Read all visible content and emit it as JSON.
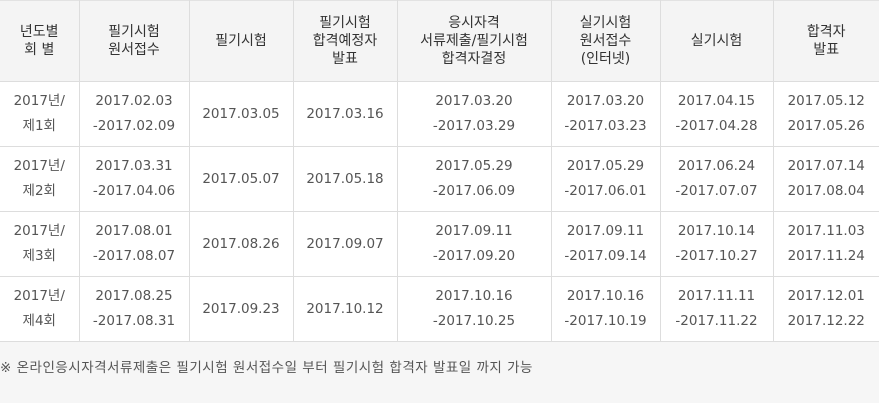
{
  "table": {
    "headers": [
      [
        "년도별",
        "회 별"
      ],
      [
        "필기시험",
        "원서접수"
      ],
      [
        "필기시험"
      ],
      [
        "필기시험",
        "합격예정자",
        "발표"
      ],
      [
        "응시자격",
        "서류제출/필기시험",
        "합격자결정"
      ],
      [
        "실기시험",
        "원서접수",
        "(인터넷)"
      ],
      [
        "실기시험"
      ],
      [
        "합격자",
        "발표"
      ]
    ],
    "rows": [
      [
        [
          "2017년/",
          "제1회"
        ],
        [
          "2017.02.03",
          "-2017.02.09"
        ],
        [
          "2017.03.05"
        ],
        [
          "2017.03.16"
        ],
        [
          "2017.03.20",
          "-2017.03.29"
        ],
        [
          "2017.03.20",
          "-2017.03.23"
        ],
        [
          "2017.04.15",
          "-2017.04.28"
        ],
        [
          "2017.05.12",
          "2017.05.26"
        ]
      ],
      [
        [
          "2017년/",
          "제2회"
        ],
        [
          "2017.03.31",
          "-2017.04.06"
        ],
        [
          "2017.05.07"
        ],
        [
          "2017.05.18"
        ],
        [
          "2017.05.29",
          "-2017.06.09"
        ],
        [
          "2017.05.29",
          "-2017.06.01"
        ],
        [
          "2017.06.24",
          "-2017.07.07"
        ],
        [
          "2017.07.14",
          "2017.08.04"
        ]
      ],
      [
        [
          "2017년/",
          "제3회"
        ],
        [
          "2017.08.01",
          "-2017.08.07"
        ],
        [
          "2017.08.26"
        ],
        [
          "2017.09.07"
        ],
        [
          "2017.09.11",
          "-2017.09.20"
        ],
        [
          "2017.09.11",
          "-2017.09.14"
        ],
        [
          "2017.10.14",
          "-2017.10.27"
        ],
        [
          "2017.11.03",
          "2017.11.24"
        ]
      ],
      [
        [
          "2017년/",
          "제4회"
        ],
        [
          "2017.08.25",
          "-2017.08.31"
        ],
        [
          "2017.09.23"
        ],
        [
          "2017.10.12"
        ],
        [
          "2017.10.16",
          "-2017.10.25"
        ],
        [
          "2017.10.16",
          "-2017.10.19"
        ],
        [
          "2017.11.11",
          "-2017.11.22"
        ],
        [
          "2017.12.01",
          "2017.12.22"
        ]
      ]
    ]
  },
  "footnote": "※ 온라인응시자격서류제출은 필기시험 원서접수일 부터 필기시험 합격자 발표일 까지 가능"
}
